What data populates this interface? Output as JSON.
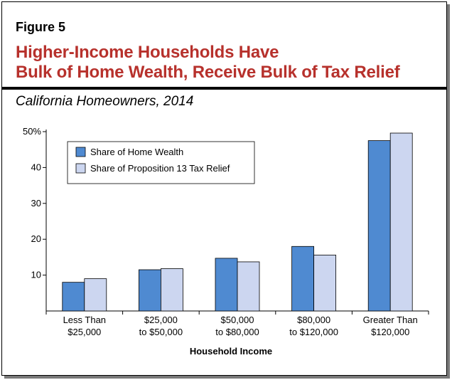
{
  "figure_label": "Figure 5",
  "title_line1": "Higher-Income Households Have",
  "title_line2": "Bulk of Home Wealth, Receive Bulk of Tax Relief",
  "subtitle": "California Homeowners, 2014",
  "colors": {
    "title": "#b7312c",
    "series1": "#4f8ad1",
    "series2": "#ccd6f0"
  },
  "chart_data": {
    "type": "bar",
    "categories": [
      [
        "Less Than",
        "$25,000"
      ],
      [
        "$25,000",
        "to $50,000"
      ],
      [
        "$50,000",
        "to $80,000"
      ],
      [
        "$80,000",
        "to $120,000"
      ],
      [
        "Greater Than",
        "$120,000"
      ]
    ],
    "series": [
      {
        "name": "Share of Home Wealth",
        "values": [
          8,
          11.5,
          14.7,
          18,
          47.5
        ]
      },
      {
        "name": "Share of Proposition 13 Tax Relief",
        "values": [
          9,
          11.8,
          13.7,
          15.6,
          49.6
        ]
      }
    ],
    "yticks": [
      10,
      20,
      30,
      40,
      50
    ],
    "ytick_labels": [
      "10",
      "20",
      "30",
      "40",
      "50%"
    ],
    "ylim": [
      0,
      50
    ],
    "xlabel": "Household Income",
    "ylabel": "",
    "legend_position": "top-left",
    "grid": false
  }
}
